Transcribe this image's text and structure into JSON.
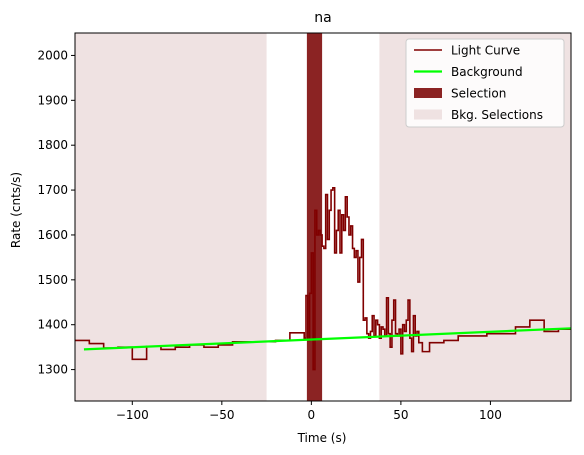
{
  "chart_data": {
    "type": "line",
    "title": "na",
    "xlabel": "Time (s)",
    "ylabel": "Rate (cnts/s)",
    "xlim": [
      -132,
      145
    ],
    "ylim": [
      1230,
      2050
    ],
    "xticks": [
      -100,
      -50,
      0,
      50,
      100
    ],
    "yticks": [
      1300,
      1400,
      1500,
      1600,
      1700,
      1800,
      1900,
      2000
    ],
    "grid": false,
    "legend_position": "top-right",
    "legend": [
      "Light Curve",
      "Background",
      "Selection",
      "Bkg. Selections"
    ],
    "colors": {
      "light_curve": "#800000",
      "background": "#00ff00",
      "selection": "#8b2323",
      "bkg_selection": "#efe2e2"
    },
    "background_line": {
      "x": [
        -127,
        145
      ],
      "y": [
        1345,
        1392
      ]
    },
    "selection": [
      -2.5,
      6
    ],
    "bkg_selections": [
      [
        -132,
        -25
      ],
      [
        38,
        145
      ]
    ],
    "light_curve": {
      "x": [
        -132,
        -124,
        -116,
        -108,
        -100,
        -92,
        -84,
        -76,
        -68,
        -60,
        -52,
        -44,
        -36,
        -28,
        -20,
        -12,
        -4,
        -3,
        -2,
        -1,
        0,
        1,
        2,
        3,
        4,
        5,
        6,
        7,
        8,
        9,
        10,
        11,
        12,
        13,
        14,
        15,
        16,
        17,
        18,
        19,
        20,
        21,
        22,
        23,
        24,
        25,
        26,
        27,
        28,
        29,
        30,
        31,
        32,
        33,
        34,
        35,
        36,
        37,
        38,
        39,
        40,
        41,
        42,
        43,
        44,
        45,
        46,
        47,
        48,
        49,
        50,
        51,
        52,
        53,
        54,
        55,
        56,
        57,
        58,
        59,
        60,
        62,
        66,
        74,
        82,
        90,
        98,
        106,
        114,
        122,
        130,
        138,
        145
      ],
      "y": [
        1365,
        1358,
        1348,
        1350,
        1323,
        1352,
        1345,
        1350,
        1355,
        1350,
        1355,
        1362,
        1362,
        1362,
        1365,
        1382,
        1370,
        1465,
        1365,
        1470,
        1560,
        1300,
        1655,
        1600,
        1610,
        1600,
        1575,
        1570,
        1690,
        1590,
        1655,
        1700,
        1705,
        1560,
        1610,
        1655,
        1560,
        1645,
        1610,
        1685,
        1640,
        1600,
        1620,
        1570,
        1550,
        1565,
        1495,
        1550,
        1590,
        1410,
        1415,
        1380,
        1370,
        1385,
        1420,
        1375,
        1410,
        1400,
        1370,
        1395,
        1390,
        1375,
        1460,
        1380,
        1350,
        1410,
        1455,
        1380,
        1375,
        1390,
        1335,
        1400,
        1385,
        1410,
        1455,
        1370,
        1340,
        1420,
        1375,
        1385,
        1360,
        1340,
        1360,
        1365,
        1375,
        1375,
        1380,
        1380,
        1395,
        1410,
        1385,
        1390,
        1392
      ]
    }
  }
}
